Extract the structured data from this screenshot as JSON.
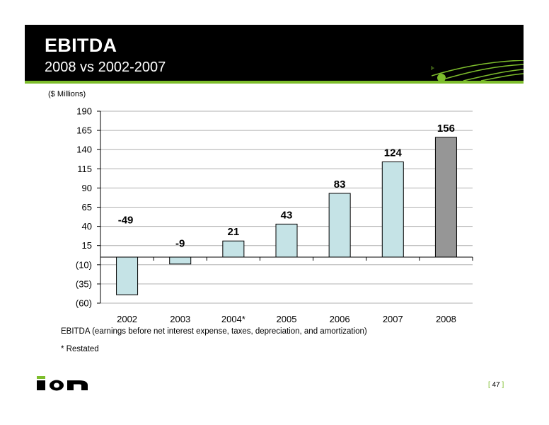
{
  "header": {
    "title": "EBITDA",
    "subtitle": "2008 vs 2002-2007"
  },
  "units_label": "($ Millions)",
  "footnotes": {
    "definition": "EBITDA (earnings before net interest expense, taxes, depreciation, and amortization)",
    "restated": "* Restated"
  },
  "page": {
    "number": "47",
    "open_bracket": "[",
    "close_bracket": "]"
  },
  "logo_text": "ion",
  "colors": {
    "header_bg": "#000000",
    "accent_green": "#7dbd2c",
    "bar_fill": "#c5e3e6",
    "highlight_bar_fill": "#969696"
  },
  "chart_data": {
    "type": "bar",
    "categories": [
      "2002",
      "2003",
      "2004*",
      "2005",
      "2006",
      "2007",
      "2008"
    ],
    "values": [
      -49,
      -9,
      21,
      43,
      83,
      124,
      156
    ],
    "data_labels": [
      "-49",
      "-9",
      "21",
      "43",
      "83",
      "124",
      "156"
    ],
    "highlight_index": 6,
    "y_ticks": [
      "190",
      "165",
      "140",
      "115",
      "90",
      "65",
      "40",
      "15",
      "(10)",
      "(35)",
      "(60)"
    ],
    "y_tick_values": [
      190,
      165,
      140,
      115,
      90,
      65,
      40,
      15,
      -10,
      -35,
      -60
    ],
    "ylim": [
      -60,
      190
    ],
    "grid": true,
    "ylabel": "($ Millions)",
    "xlabel": ""
  }
}
